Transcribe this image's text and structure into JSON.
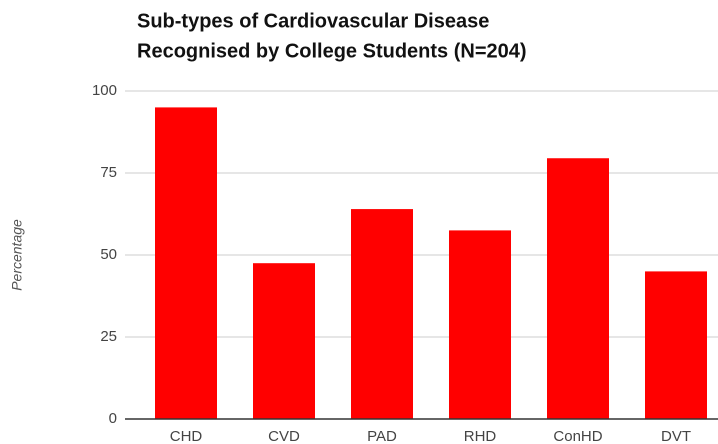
{
  "chart_data": {
    "type": "bar",
    "title": [
      "Sub-types of Cardiovascular Disease",
      "Recognised by College Students (N=204)"
    ],
    "y_label": "Percentage",
    "categories": [
      "CHD",
      "CVD",
      "PAD",
      "RHD",
      "ConHD",
      "DVT"
    ],
    "values": [
      95,
      47.5,
      64,
      57.5,
      79.5,
      45
    ],
    "color": "#ff0000",
    "ylim": [
      0,
      100
    ],
    "yticks": [
      0,
      25,
      50,
      75,
      100
    ],
    "grid": true
  }
}
